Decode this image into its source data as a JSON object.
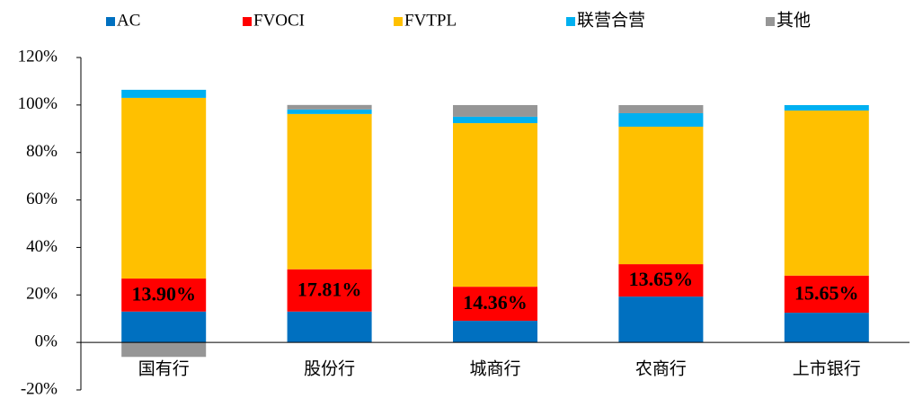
{
  "chart_data": {
    "type": "stacked_bar",
    "categories": [
      "国有行",
      "股份行",
      "城商行",
      "农商行",
      "上市银行"
    ],
    "series": [
      {
        "name": "AC",
        "color": "#0070c0",
        "values": [
          13.0,
          13.0,
          9.1,
          19.3,
          12.5
        ]
      },
      {
        "name": "FVOCI",
        "color": "#ff0000",
        "values": [
          13.9,
          17.81,
          14.36,
          13.65,
          15.65
        ],
        "value_labels": [
          "13.90%",
          "17.81%",
          "14.36%",
          "13.65%",
          "15.65%"
        ]
      },
      {
        "name": "FVTPL",
        "color": "#ffc000",
        "values": [
          76.1,
          65.4,
          68.9,
          57.9,
          69.5
        ]
      },
      {
        "name": "联营合营",
        "color": "#00b0f0",
        "values": [
          3.4,
          1.9,
          2.7,
          5.7,
          2.3
        ]
      },
      {
        "name": "其他",
        "color": "#969696",
        "values": [
          -6.1,
          1.9,
          4.9,
          3.4,
          0
        ]
      }
    ],
    "ylim": [
      -20,
      120
    ],
    "yticks": [
      {
        "value": -20,
        "label": "-20%"
      },
      {
        "value": 0,
        "label": "0%"
      },
      {
        "value": 20,
        "label": "20%"
      },
      {
        "value": 40,
        "label": "40%"
      },
      {
        "value": 60,
        "label": "60%"
      },
      {
        "value": 80,
        "label": "80%"
      },
      {
        "value": 100,
        "label": "100%"
      },
      {
        "value": 120,
        "label": "120%"
      }
    ],
    "legend": "top"
  }
}
